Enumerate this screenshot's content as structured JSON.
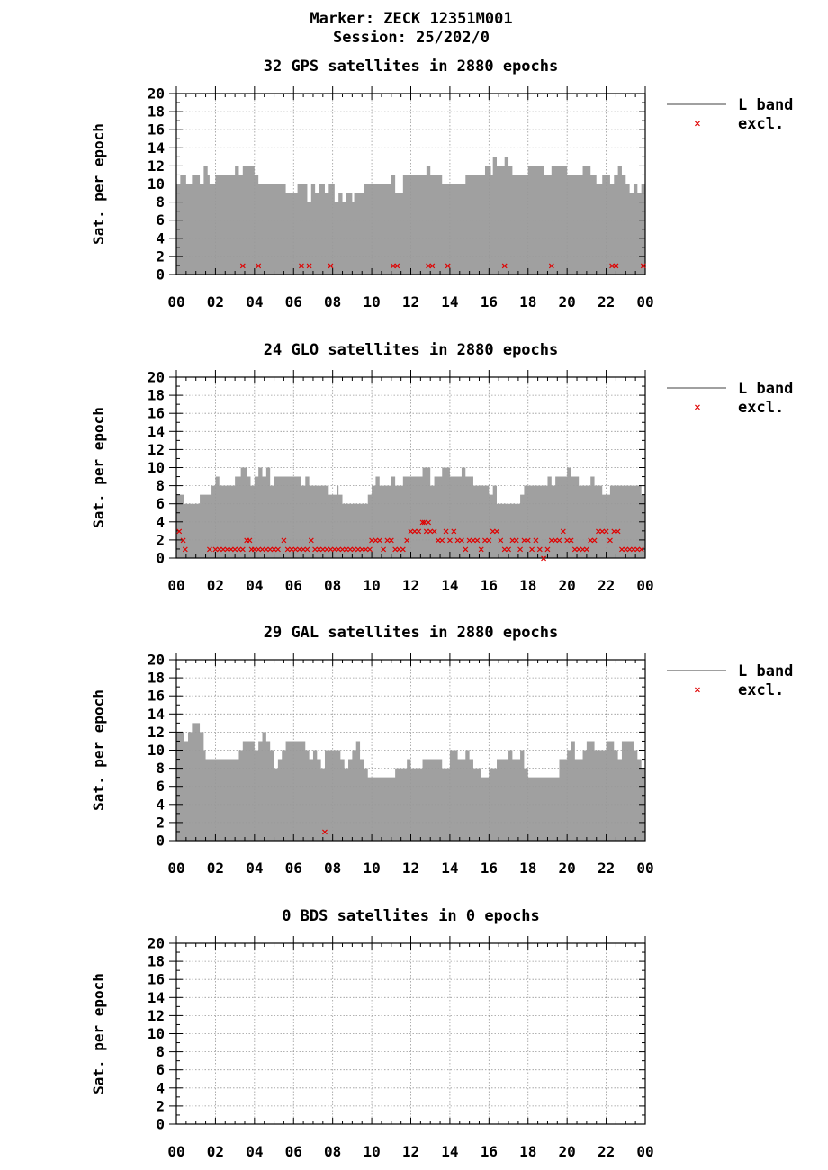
{
  "header": {
    "line1": "Marker: ZECK 12351M001",
    "line2": "Session: 25/202/0"
  },
  "colors": {
    "bar": "#a0a0a0",
    "excluded": "#e00000",
    "grid": "#999999",
    "axis": "#000000"
  },
  "chart_data": [
    {
      "type": "area",
      "system": "GPS",
      "title": "32 GPS satellites in 2880 epochs",
      "ylabel": "Sat. per epoch",
      "xlabel": "",
      "xlim": [
        0,
        24
      ],
      "ylim": [
        0,
        20
      ],
      "xticklabels": [
        "00",
        "02",
        "04",
        "06",
        "08",
        "10",
        "12",
        "14",
        "16",
        "18",
        "20",
        "22",
        "00"
      ],
      "yticklabels": [
        "0",
        "2",
        "4",
        "6",
        "8",
        "10",
        "12",
        "14",
        "16",
        "18",
        "20"
      ],
      "grid": true,
      "legend": {
        "placement": "right",
        "entries": [
          "L band",
          "excl."
        ]
      },
      "series": [
        {
          "name": "L band",
          "x": [
            0,
            0.2,
            0.5,
            0.8,
            1.2,
            1.4,
            1.6,
            1.7,
            2.0,
            2.4,
            3.0,
            3.2,
            3.4,
            3.6,
            4.0,
            4.2,
            4.6,
            5.0,
            5.4,
            5.6,
            5.8,
            6.2,
            6.6,
            6.7,
            6.9,
            7.1,
            7.3,
            7.6,
            7.8,
            8.1,
            8.3,
            8.5,
            8.7,
            9.0,
            9.1,
            9.3,
            9.6,
            10.0,
            10.3,
            10.6,
            11.0,
            11.2,
            11.6,
            12.0,
            12.5,
            12.8,
            13.0,
            13.6,
            14.0,
            14.4,
            14.8,
            15.0,
            15.5,
            15.8,
            16.1,
            16.2,
            16.4,
            16.6,
            16.8,
            17.0,
            17.2,
            17.6,
            18.0,
            18.4,
            18.8,
            19.0,
            19.2,
            19.4,
            19.6,
            20.0,
            20.4,
            20.8,
            21.2,
            21.5,
            21.8,
            22.0,
            22.2,
            22.4,
            22.6,
            22.8,
            23.0,
            23.2,
            23.4,
            23.6,
            23.8
          ],
          "y": [
            10,
            11,
            10,
            11,
            10,
            12,
            11,
            10,
            11,
            11,
            12,
            11,
            12,
            12,
            11,
            10,
            10,
            10,
            10,
            9,
            9,
            10,
            10,
            8,
            10,
            9,
            10,
            9,
            10,
            8,
            9,
            8,
            9,
            8,
            9,
            9,
            10,
            10,
            10,
            10,
            11,
            9,
            11,
            11,
            11,
            12,
            11,
            10,
            10,
            10,
            11,
            11,
            11,
            12,
            11,
            13,
            12,
            12,
            13,
            12,
            11,
            11,
            12,
            12,
            11,
            11,
            12,
            12,
            12,
            11,
            11,
            12,
            11,
            10,
            11,
            11,
            10,
            11,
            12,
            11,
            10,
            9,
            10,
            9,
            10
          ]
        },
        {
          "name": "excl.",
          "x": [
            3.4,
            4.2,
            6.4,
            6.8,
            7.9,
            11.1,
            11.3,
            12.9,
            13.1,
            13.9,
            16.8,
            19.2,
            22.3,
            22.5,
            23.9
          ],
          "y": [
            1,
            1,
            1,
            1,
            1,
            1,
            1,
            1,
            1,
            1,
            1,
            1,
            1,
            1,
            1
          ]
        }
      ]
    },
    {
      "type": "area",
      "system": "GLO",
      "title": "24 GLO satellites in 2880 epochs",
      "ylabel": "Sat. per epoch",
      "xlabel": "",
      "xlim": [
        0,
        24
      ],
      "ylim": [
        0,
        20
      ],
      "xticklabels": [
        "00",
        "02",
        "04",
        "06",
        "08",
        "10",
        "12",
        "14",
        "16",
        "18",
        "20",
        "22",
        "00"
      ],
      "yticklabels": [
        "0",
        "2",
        "4",
        "6",
        "8",
        "10",
        "12",
        "14",
        "16",
        "18",
        "20"
      ],
      "grid": true,
      "legend": {
        "placement": "right",
        "entries": [
          "L band",
          "excl."
        ]
      },
      "series": [
        {
          "name": "L band",
          "x": [
            0,
            0.4,
            1.2,
            1.6,
            1.8,
            2.0,
            2.2,
            2.6,
            3.0,
            3.3,
            3.6,
            3.8,
            4.0,
            4.2,
            4.4,
            4.6,
            4.8,
            5.0,
            5.2,
            5.6,
            6.0,
            6.4,
            6.6,
            6.8,
            7.4,
            7.8,
            8.2,
            8.3,
            8.5,
            9.0,
            9.8,
            10.0,
            10.2,
            10.4,
            11.0,
            11.2,
            11.6,
            12.0,
            12.4,
            12.6,
            13.0,
            13.2,
            13.6,
            14.0,
            14.4,
            14.6,
            14.8,
            15.2,
            15.6,
            16.0,
            16.2,
            16.4,
            16.6,
            17.0,
            17.6,
            17.8,
            18.0,
            18.6,
            19.0,
            19.2,
            19.4,
            19.8,
            20.0,
            20.2,
            20.6,
            21.0,
            21.2,
            21.4,
            21.8,
            22.2,
            22.6,
            23.0,
            23.4,
            23.8
          ],
          "y": [
            7,
            6,
            7,
            7,
            8,
            9,
            8,
            8,
            9,
            10,
            9,
            8,
            9,
            10,
            9,
            10,
            8,
            9,
            9,
            9,
            9,
            8,
            9,
            8,
            8,
            7,
            8,
            7,
            6,
            6,
            7,
            8,
            9,
            8,
            9,
            8,
            9,
            9,
            9,
            10,
            8,
            9,
            10,
            9,
            9,
            10,
            9,
            8,
            8,
            7,
            8,
            6,
            6,
            6,
            7,
            8,
            8,
            8,
            9,
            8,
            9,
            9,
            10,
            9,
            8,
            8,
            9,
            8,
            7,
            8,
            8,
            8,
            8,
            7
          ]
        },
        {
          "name": "excl.",
          "x": [
            0.15,
            0.35,
            0.45,
            1.7,
            2.0,
            2.2,
            2.4,
            2.6,
            2.8,
            3.0,
            3.2,
            3.4,
            3.6,
            3.75,
            3.85,
            4.0,
            4.2,
            4.4,
            4.6,
            4.8,
            5.0,
            5.2,
            5.5,
            5.7,
            5.9,
            6.1,
            6.3,
            6.5,
            6.7,
            6.9,
            7.1,
            7.3,
            7.5,
            7.7,
            7.9,
            8.1,
            8.3,
            8.5,
            8.7,
            8.9,
            9.1,
            9.3,
            9.5,
            9.7,
            9.9,
            10.0,
            10.2,
            10.4,
            10.6,
            10.8,
            11.0,
            11.2,
            11.4,
            11.6,
            11.8,
            12.0,
            12.2,
            12.4,
            12.6,
            12.7,
            12.8,
            12.9,
            13.0,
            13.2,
            13.4,
            13.6,
            13.8,
            14.0,
            14.2,
            14.4,
            14.6,
            14.8,
            15.0,
            15.2,
            15.4,
            15.6,
            15.8,
            16.0,
            16.2,
            16.4,
            16.6,
            16.8,
            17.0,
            17.2,
            17.4,
            17.6,
            17.8,
            18.0,
            18.2,
            18.4,
            18.6,
            18.8,
            19.0,
            19.2,
            19.4,
            19.6,
            19.8,
            20.0,
            20.2,
            20.4,
            20.6,
            20.8,
            21.0,
            21.2,
            21.4,
            21.6,
            21.8,
            22.0,
            22.2,
            22.4,
            22.6,
            22.8,
            23.0,
            23.2,
            23.4,
            23.6,
            23.8
          ],
          "y": [
            3,
            2,
            1,
            1,
            1,
            1,
            1,
            1,
            1,
            1,
            1,
            1,
            2,
            2,
            1,
            1,
            1,
            1,
            1,
            1,
            1,
            1,
            2,
            1,
            1,
            1,
            1,
            1,
            1,
            2,
            1,
            1,
            1,
            1,
            1,
            1,
            1,
            1,
            1,
            1,
            1,
            1,
            1,
            1,
            1,
            2,
            2,
            2,
            1,
            2,
            2,
            1,
            1,
            1,
            2,
            3,
            3,
            3,
            4,
            4,
            3,
            4,
            3,
            3,
            2,
            2,
            3,
            2,
            3,
            2,
            2,
            1,
            2,
            2,
            2,
            1,
            2,
            2,
            3,
            3,
            2,
            1,
            1,
            2,
            2,
            1,
            2,
            2,
            1,
            2,
            1,
            0,
            1,
            2,
            2,
            2,
            3,
            2,
            2,
            1,
            1,
            1,
            1,
            2,
            2,
            3,
            3,
            3,
            2,
            3,
            3,
            1,
            1,
            1,
            1,
            1,
            1
          ]
        }
      ]
    },
    {
      "type": "area",
      "system": "GAL",
      "title": "29 GAL satellites in 2880 epochs",
      "ylabel": "Sat. per epoch",
      "xlabel": "",
      "xlim": [
        0,
        24
      ],
      "ylim": [
        0,
        20
      ],
      "xticklabels": [
        "00",
        "02",
        "04",
        "06",
        "08",
        "10",
        "12",
        "14",
        "16",
        "18",
        "20",
        "22",
        "00"
      ],
      "yticklabels": [
        "0",
        "2",
        "4",
        "6",
        "8",
        "10",
        "12",
        "14",
        "16",
        "18",
        "20"
      ],
      "grid": true,
      "legend": {
        "placement": "right",
        "entries": [
          "L band",
          "excl."
        ]
      },
      "series": [
        {
          "name": "L band",
          "x": [
            0,
            0.4,
            0.6,
            0.8,
            1.2,
            1.4,
            1.5,
            2.0,
            3.0,
            3.2,
            3.4,
            3.6,
            4.0,
            4.2,
            4.4,
            4.6,
            4.8,
            5.0,
            5.2,
            5.4,
            5.6,
            6.0,
            6.2,
            6.6,
            6.8,
            7.0,
            7.2,
            7.4,
            7.6,
            7.8,
            8.0,
            8.4,
            8.6,
            8.8,
            9.0,
            9.2,
            9.4,
            9.6,
            9.8,
            10.0,
            11.0,
            11.2,
            11.6,
            11.8,
            12.0,
            12.6,
            13.0,
            13.6,
            14.0,
            14.4,
            14.8,
            15.0,
            15.2,
            15.6,
            16.0,
            16.4,
            16.6,
            17.0,
            17.2,
            17.6,
            17.8,
            18.0,
            18.4,
            19.0,
            19.4,
            19.6,
            20.0,
            20.2,
            20.4,
            20.8,
            21.0,
            21.4,
            21.8,
            22.0,
            22.4,
            22.6,
            22.8,
            23.2,
            23.4,
            23.6,
            23.8
          ],
          "y": [
            12,
            11,
            12,
            13,
            12,
            10,
            9,
            9,
            9,
            10,
            11,
            11,
            10,
            11,
            12,
            11,
            10,
            8,
            9,
            10,
            11,
            11,
            11,
            10,
            9,
            10,
            9,
            8,
            10,
            10,
            10,
            9,
            8,
            9,
            10,
            11,
            9,
            8,
            7,
            7,
            7,
            8,
            8,
            9,
            8,
            9,
            9,
            8,
            10,
            9,
            10,
            9,
            8,
            7,
            8,
            9,
            9,
            10,
            9,
            10,
            8,
            7,
            7,
            7,
            7,
            9,
            10,
            11,
            9,
            10,
            11,
            10,
            10,
            11,
            10,
            9,
            11,
            11,
            10,
            9,
            8
          ]
        },
        {
          "name": "excl.",
          "x": [
            7.6
          ],
          "y": [
            1
          ]
        }
      ]
    },
    {
      "type": "area",
      "system": "BDS",
      "title": "0 BDS satellites in 0 epochs",
      "ylabel": "Sat. per epoch",
      "xlabel": "",
      "xlim": [
        0,
        24
      ],
      "ylim": [
        0,
        20
      ],
      "xticklabels": [
        "00",
        "02",
        "04",
        "06",
        "08",
        "10",
        "12",
        "14",
        "16",
        "18",
        "20",
        "22",
        "00"
      ],
      "yticklabels": [
        "0",
        "2",
        "4",
        "6",
        "8",
        "10",
        "12",
        "14",
        "16",
        "18",
        "20"
      ],
      "grid": true,
      "legend": {
        "placement": "none",
        "entries": []
      },
      "series": []
    }
  ]
}
